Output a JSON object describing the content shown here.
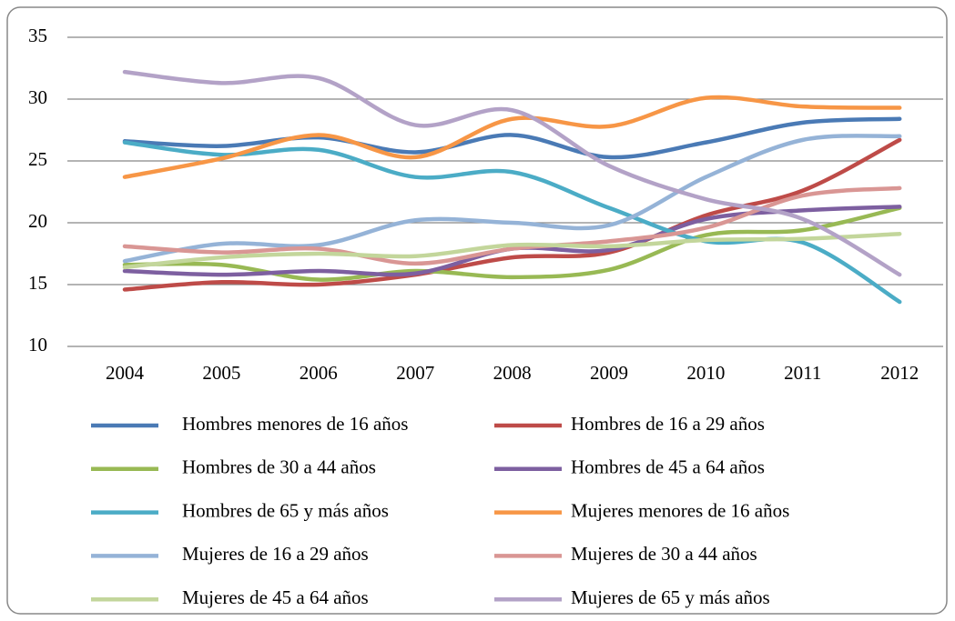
{
  "chart_data": {
    "type": "line",
    "categories": [
      "2004",
      "2005",
      "2006",
      "2007",
      "2008",
      "2009",
      "2010",
      "2011",
      "2012"
    ],
    "ylim": [
      10,
      35
    ],
    "yticks": [
      10,
      15,
      20,
      25,
      30,
      35
    ],
    "grid": true,
    "smooth": true,
    "legend": "bottom",
    "series": [
      {
        "name": "Hombres menores de 16 años",
        "color": "#4a7ab5",
        "values": [
          26.6,
          26.2,
          26.9,
          25.7,
          27.1,
          25.3,
          26.5,
          28.1,
          28.4
        ]
      },
      {
        "name": "Hombres de 16 a 29 años",
        "color": "#be4b48",
        "values": [
          14.6,
          15.2,
          15.0,
          15.8,
          17.2,
          17.6,
          20.6,
          22.6,
          26.7
        ]
      },
      {
        "name": "Hombres de 30 a 44 años",
        "color": "#98b954",
        "values": [
          16.6,
          16.6,
          15.4,
          16.1,
          15.6,
          16.2,
          19.0,
          19.4,
          21.2
        ]
      },
      {
        "name": "Hombres de 45 a 64 años",
        "color": "#7d5fa0",
        "values": [
          16.1,
          15.8,
          16.1,
          15.9,
          17.9,
          17.8,
          20.3,
          21.0,
          21.3
        ]
      },
      {
        "name": "Hombres de 65 y más años",
        "color": "#4bacc6",
        "values": [
          26.5,
          25.5,
          25.9,
          23.7,
          24.1,
          21.2,
          18.5,
          18.4,
          13.6
        ]
      },
      {
        "name": "Mujeres menores de 16 años",
        "color": "#f79646",
        "values": [
          23.7,
          25.2,
          27.1,
          25.3,
          28.4,
          27.8,
          30.1,
          29.4,
          29.3
        ]
      },
      {
        "name": "Mujeres de 16 a 29 años",
        "color": "#95b3d7",
        "values": [
          16.9,
          18.3,
          18.2,
          20.2,
          20.0,
          19.8,
          23.7,
          26.7,
          27.0
        ]
      },
      {
        "name": "Mujeres de 30 a 44 años",
        "color": "#d99694",
        "values": [
          18.1,
          17.6,
          17.9,
          16.7,
          17.9,
          18.5,
          19.6,
          22.2,
          22.8
        ]
      },
      {
        "name": "Mujeres de 45 a 64 años",
        "color": "#c3d69b",
        "values": [
          16.4,
          17.2,
          17.5,
          17.3,
          18.2,
          18.1,
          18.6,
          18.7,
          19.1
        ]
      },
      {
        "name": "Mujeres de 65 y más años",
        "color": "#b3a2c7",
        "values": [
          32.2,
          31.3,
          31.7,
          27.9,
          29.1,
          24.6,
          21.9,
          20.3,
          15.8
        ]
      }
    ]
  }
}
